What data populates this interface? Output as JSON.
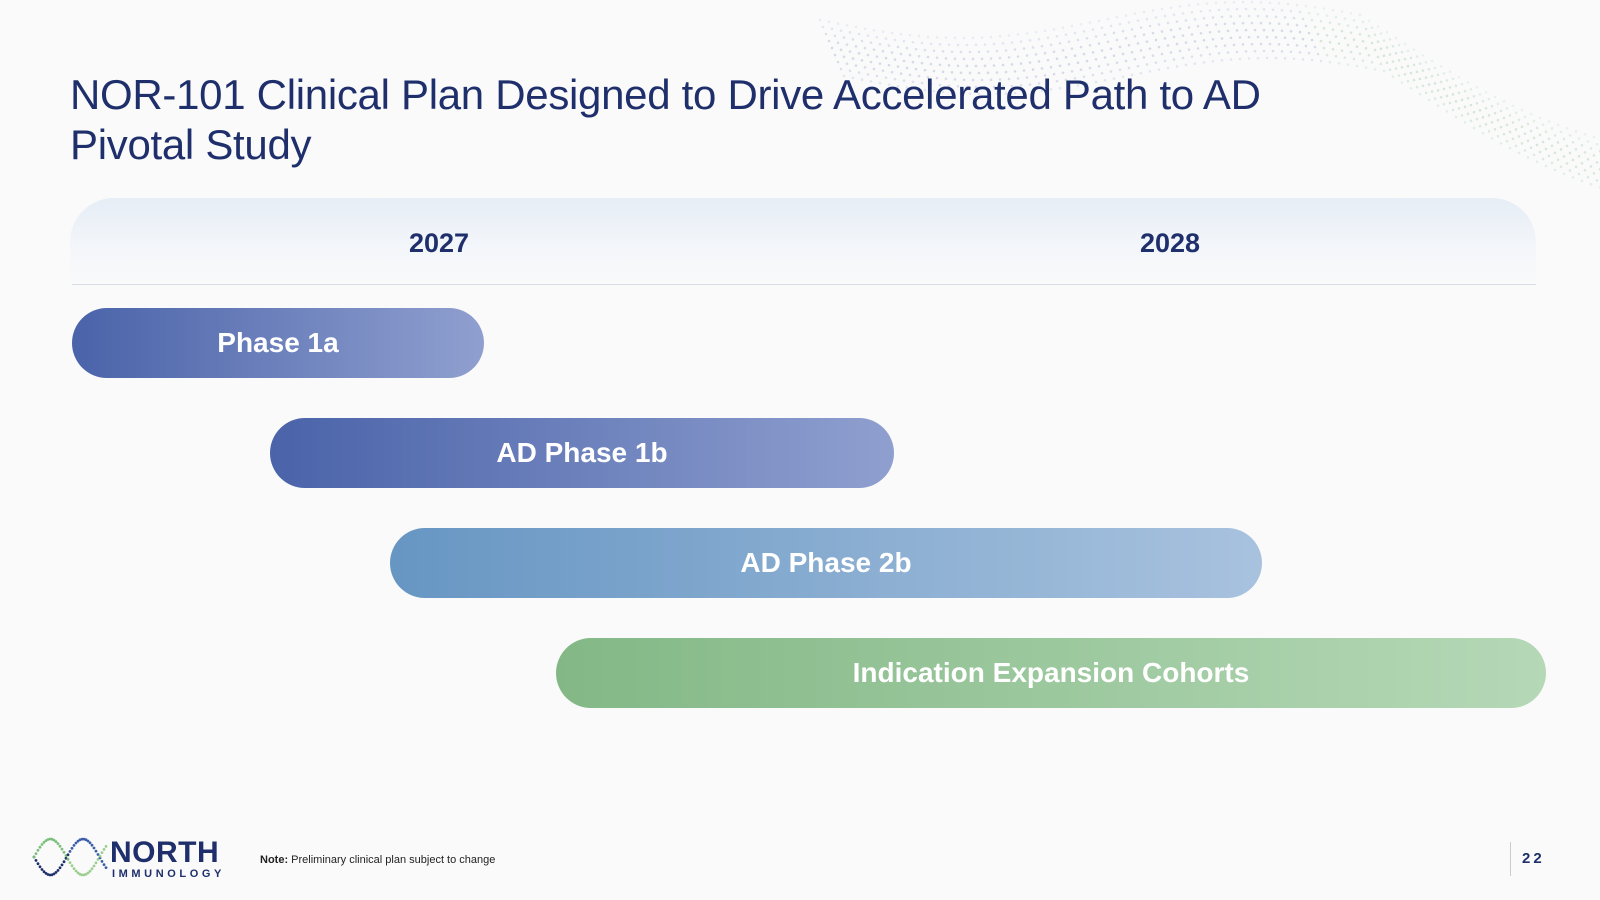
{
  "slide": {
    "title": "NOR-101 Clinical Plan Designed to Drive Accelerated Path to AD Pivotal Study",
    "years": [
      "2027",
      "2028"
    ],
    "bars": [
      {
        "label": "Phase 1a"
      },
      {
        "label": "AD Phase 1b"
      },
      {
        "label": "AD Phase 2b"
      },
      {
        "label": "Indication Expansion Cohorts"
      }
    ],
    "colors": {
      "title": "#1f2f6b",
      "phase_blue": "#4a63a9",
      "phase_2b_blue": "#6796c3",
      "expansion_green": "#83b886"
    }
  },
  "footer": {
    "logo_name": "NORTH",
    "logo_sub": "IMMUNOLOGY",
    "note_label": "Note:",
    "note_text": " Preliminary clinical plan subject to change",
    "page_number": "22"
  }
}
